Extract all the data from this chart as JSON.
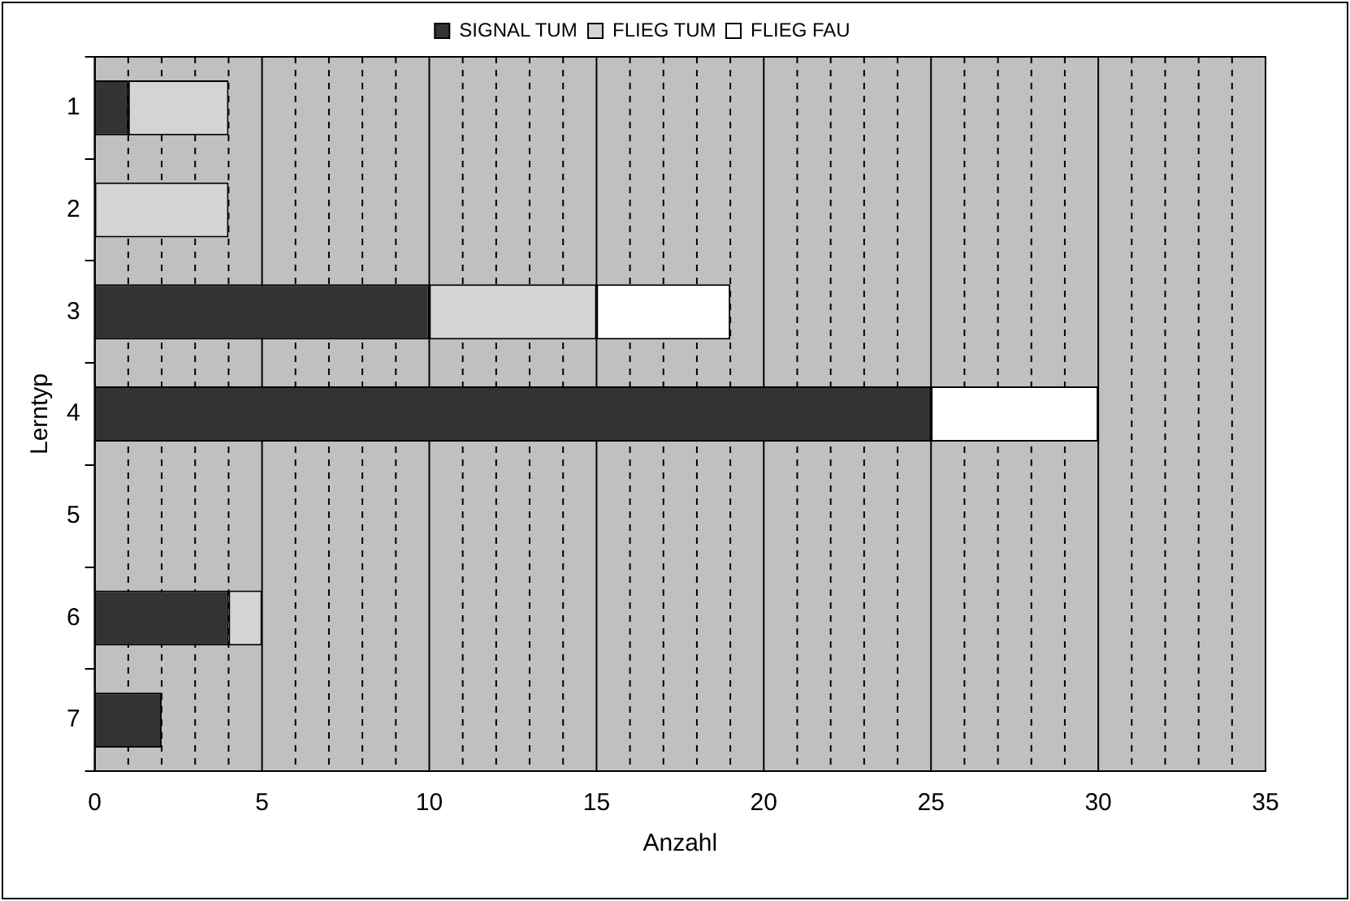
{
  "chart_data": {
    "type": "bar",
    "orientation": "horizontal",
    "stacked": true,
    "xlabel": "Anzahl",
    "ylabel": "Lerntyp",
    "categories": [
      "1",
      "2",
      "3",
      "4",
      "5",
      "6",
      "7"
    ],
    "series": [
      {
        "name": "SIGNAL TUM",
        "color": "#333333",
        "values": [
          1,
          0,
          10,
          25,
          0,
          4,
          2
        ]
      },
      {
        "name": "FLIEG TUM",
        "color": "#d4d4d4",
        "values": [
          3,
          4,
          5,
          0,
          0,
          1,
          0
        ]
      },
      {
        "name": "FLIEG FAU",
        "color": "#ffffff",
        "values": [
          0,
          0,
          4,
          5,
          0,
          0,
          0
        ]
      }
    ],
    "xlim": [
      0,
      35
    ],
    "xticks": [
      0,
      {
        "value": 1,
        "label": null
      },
      {
        "value": 2,
        "label": null
      },
      {
        "value": 3,
        "label": null
      },
      {
        "value": 4,
        "label": null
      },
      5,
      {
        "value": 6,
        "label": null
      },
      {
        "value": 7,
        "label": null
      },
      {
        "value": 8,
        "label": null
      },
      {
        "value": 9,
        "label": null
      },
      10,
      {
        "value": 11,
        "label": null
      },
      {
        "value": 12,
        "label": null
      },
      {
        "value": 13,
        "label": null
      },
      {
        "value": 14,
        "label": null
      },
      15,
      {
        "value": 16,
        "label": null
      },
      {
        "value": 17,
        "label": null
      },
      {
        "value": 18,
        "label": null
      },
      {
        "value": 19,
        "label": null
      },
      20,
      {
        "value": 21,
        "label": null
      },
      {
        "value": 22,
        "label": null
      },
      {
        "value": 23,
        "label": null
      },
      {
        "value": 24,
        "label": null
      },
      25,
      {
        "value": 26,
        "label": null
      },
      {
        "value": 27,
        "label": null
      },
      {
        "value": 28,
        "label": null
      },
      {
        "value": 29,
        "label": null
      },
      30,
      {
        "value": 31,
        "label": null
      },
      {
        "value": 32,
        "label": null
      },
      {
        "value": 33,
        "label": null
      },
      {
        "value": 34,
        "label": null
      },
      35
    ],
    "grid": "x",
    "legend": "top"
  }
}
